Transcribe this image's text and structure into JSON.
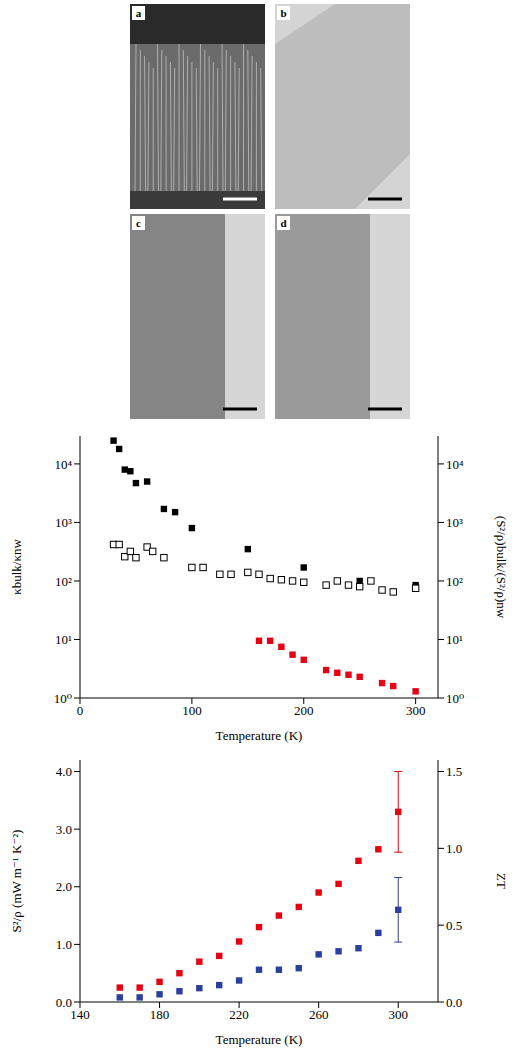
{
  "panels": [
    "a",
    "b",
    "c",
    "d"
  ],
  "chart_data": [
    {
      "type": "scatter",
      "x_label": "Temperature (K)",
      "y_label": "κbulk/κnw",
      "y2_label": "(S²/ρ)bulk/(S²/ρ)nw",
      "xlim": [
        0,
        320
      ],
      "xticks": [
        0,
        100,
        200,
        300
      ],
      "ylim": [
        1,
        30000
      ],
      "yticks": [
        {
          "value": 1,
          "label": "10⁰"
        },
        {
          "value": 10,
          "label": "10¹"
        },
        {
          "value": 100,
          "label": "10²"
        },
        {
          "value": 1000,
          "label": "10³"
        },
        {
          "value": 10000,
          "label": "10⁴"
        }
      ],
      "y2lim": [
        1,
        30000
      ],
      "y2ticks": [
        {
          "value": 1,
          "label": "10⁰"
        },
        {
          "value": 10,
          "label": "10¹"
        },
        {
          "value": 100,
          "label": "10²"
        },
        {
          "value": 1000,
          "label": "10³"
        },
        {
          "value": 10000,
          "label": "10⁴"
        }
      ],
      "log": "y",
      "grid": false,
      "series": [
        {
          "color": "#000000",
          "marker": "square",
          "x": [
            30,
            35,
            40,
            45,
            50,
            60,
            75,
            85,
            100,
            150,
            200,
            250,
            300
          ],
          "values": [
            25000,
            18000,
            8000,
            7500,
            4700,
            5000,
            1700,
            1500,
            800,
            350,
            170,
            100,
            85
          ]
        },
        {
          "color": "#000000",
          "marker": "open-square",
          "x": [
            30,
            35,
            40,
            45,
            50,
            60,
            65,
            75,
            100,
            110,
            125,
            135,
            150,
            160,
            170,
            180,
            190,
            200,
            220,
            230,
            240,
            250,
            260,
            270,
            280,
            300
          ],
          "values": [
            420,
            420,
            260,
            320,
            250,
            380,
            320,
            250,
            170,
            170,
            130,
            130,
            140,
            130,
            110,
            105,
            100,
            95,
            85,
            100,
            85,
            80,
            100,
            70,
            65,
            75
          ]
        },
        {
          "color": "#e60012",
          "marker": "square",
          "axis": "y2",
          "x": [
            160,
            170,
            180,
            190,
            200,
            220,
            230,
            240,
            250,
            270,
            280,
            300
          ],
          "values": [
            9.5,
            9.5,
            7.5,
            5.5,
            4.5,
            3,
            2.7,
            2.5,
            2.3,
            1.8,
            1.6,
            1.3
          ]
        }
      ]
    },
    {
      "type": "scatter",
      "x_label": "Temperature (K)",
      "y_label": "S²/ρ (mW m⁻¹ K⁻²)",
      "y2_label": "ZT",
      "xlim": [
        140,
        320
      ],
      "xticks": [
        140,
        180,
        220,
        260,
        300
      ],
      "ylim": [
        0,
        4.2
      ],
      "yticks": [
        {
          "value": 0,
          "label": "0.0"
        },
        {
          "value": 1,
          "label": "1.0"
        },
        {
          "value": 2,
          "label": "2.0"
        },
        {
          "value": 3,
          "label": "3.0"
        },
        {
          "value": 4,
          "label": "4.0"
        }
      ],
      "y2lim": [
        0,
        1.575
      ],
      "y2ticks": [
        {
          "value": 0,
          "label": "0.0"
        },
        0.5,
        {
          "value": 1,
          "label": "1.0"
        },
        {
          "value": 1.5,
          "label": "1.5"
        }
      ],
      "grid": false,
      "series": [
        {
          "color": "#e60012",
          "marker": "square",
          "x": [
            160,
            170,
            180,
            190,
            200,
            210,
            220,
            230,
            240,
            250,
            260,
            270,
            280,
            290,
            300
          ],
          "values": [
            0.25,
            0.25,
            0.35,
            0.5,
            0.7,
            0.8,
            1.05,
            1.3,
            1.5,
            1.65,
            1.9,
            2.05,
            2.45,
            2.65,
            3.3
          ],
          "errors": [
            null,
            null,
            null,
            null,
            null,
            null,
            null,
            null,
            null,
            null,
            null,
            null,
            null,
            null,
            0.7
          ]
        },
        {
          "color": "#2b3f9e",
          "marker": "square",
          "axis": "y2",
          "x": [
            160,
            170,
            180,
            190,
            200,
            210,
            220,
            230,
            240,
            250,
            260,
            270,
            280,
            290,
            300
          ],
          "values": [
            0.03,
            0.03,
            0.05,
            0.07,
            0.09,
            0.11,
            0.14,
            0.21,
            0.21,
            0.22,
            0.31,
            0.33,
            0.35,
            0.45,
            0.6
          ],
          "errors": [
            null,
            null,
            null,
            null,
            null,
            null,
            null,
            null,
            null,
            null,
            null,
            null,
            null,
            null,
            0.21
          ]
        }
      ]
    }
  ]
}
